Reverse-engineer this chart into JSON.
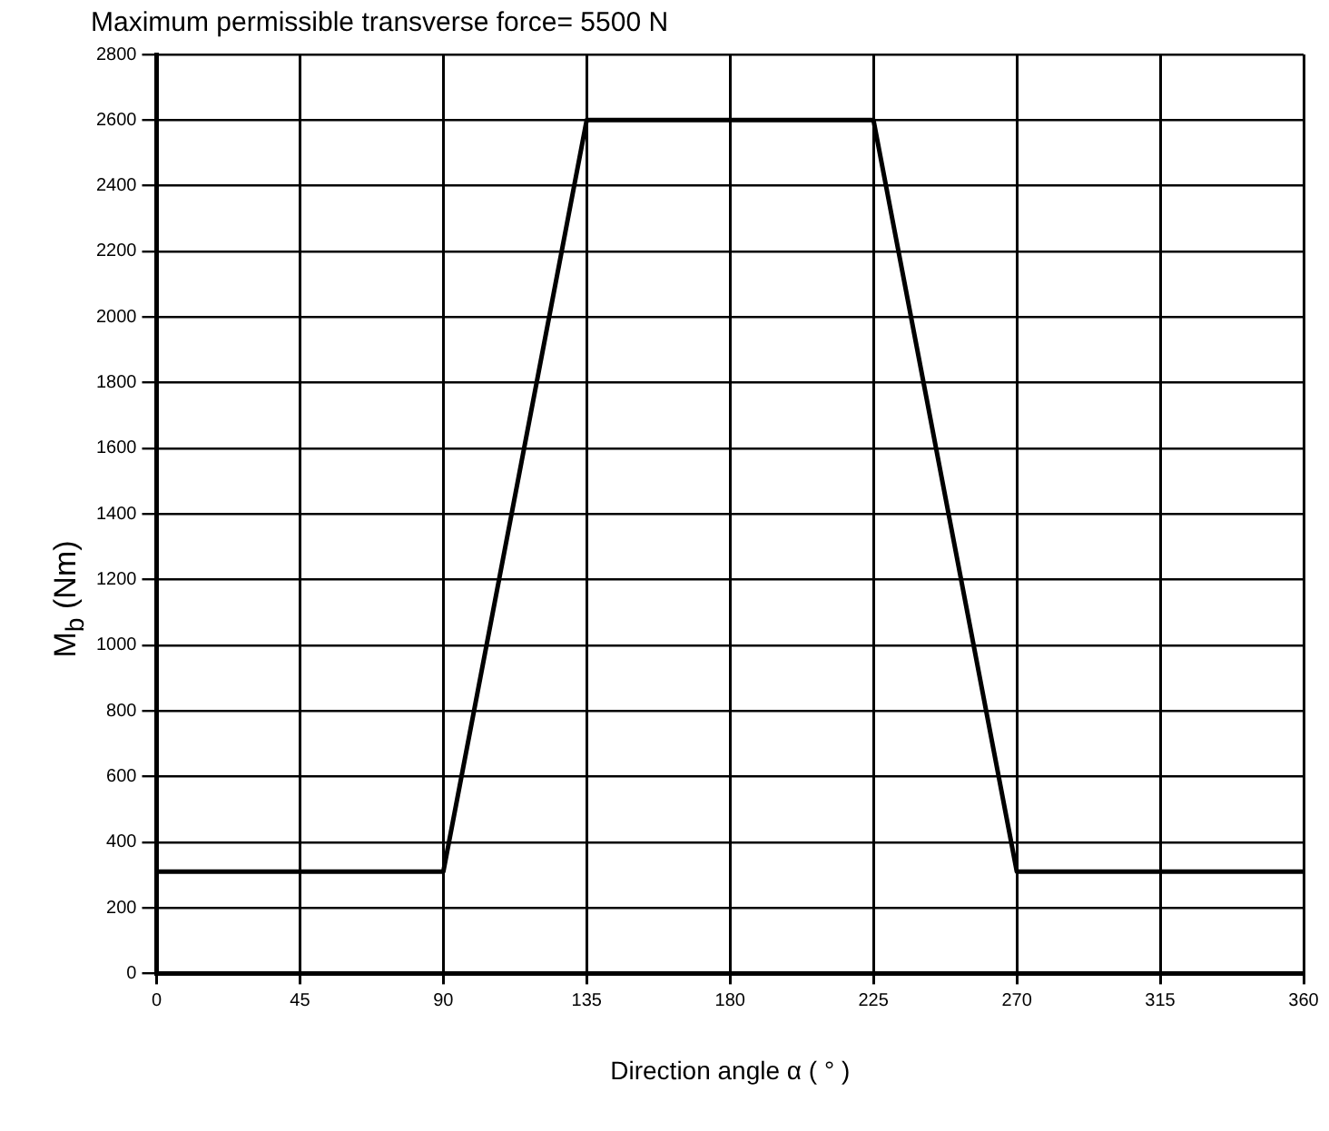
{
  "chart_data": {
    "type": "line",
    "title": "Maximum permissible transverse force= 5500 N",
    "xlabel": "Direction angle α ( ° )",
    "ylabel": "M$_{b}$ (Nm)",
    "x": [
      0,
      90,
      135,
      225,
      270,
      360
    ],
    "series": [
      {
        "color": "#000000",
        "values": [
          310,
          310,
          2600,
          2600,
          310,
          310
        ]
      }
    ],
    "xlim": [
      0,
      360
    ],
    "xticks": [
      0,
      45,
      90,
      135,
      180,
      225,
      270,
      315,
      360
    ],
    "ylim": [
      0,
      2800
    ],
    "yticks": [
      0,
      200,
      400,
      600,
      800,
      1000,
      1200,
      1400,
      1600,
      1800,
      2000,
      2200,
      2400,
      2600,
      2800
    ],
    "grid": true,
    "legend": false,
    "marker": "none",
    "line_style": "solid"
  }
}
